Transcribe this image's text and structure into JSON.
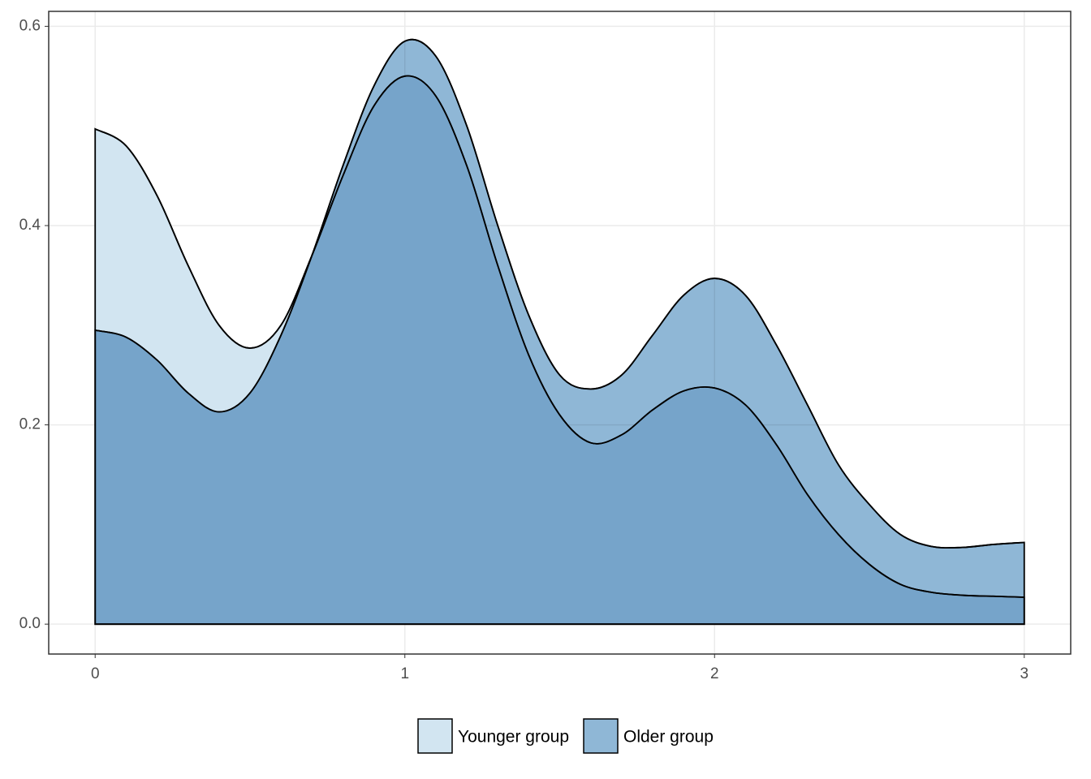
{
  "chart_data": {
    "type": "density",
    "x": [
      0,
      0.1,
      0.2,
      0.3,
      0.4,
      0.5,
      0.6,
      0.7,
      0.8,
      0.9,
      1,
      1.1,
      1.2,
      1.3,
      1.4,
      1.5,
      1.6,
      1.7,
      1.8,
      1.9,
      2,
      2.1,
      2.2,
      2.3,
      2.4,
      2.5,
      2.6,
      2.7,
      2.8,
      2.9,
      3
    ],
    "series": [
      {
        "name": "Younger group",
        "color": "#d2e5f1",
        "values": [
          0.497,
          0.48,
          0.43,
          0.36,
          0.3,
          0.277,
          0.3,
          0.37,
          0.45,
          0.52,
          0.55,
          0.53,
          0.46,
          0.36,
          0.27,
          0.21,
          0.182,
          0.19,
          0.215,
          0.234,
          0.237,
          0.22,
          0.18,
          0.13,
          0.09,
          0.06,
          0.04,
          0.032,
          0.029,
          0.028,
          0.027
        ]
      },
      {
        "name": "Older group",
        "color": "#8fb7d6",
        "values": [
          0.295,
          0.288,
          0.265,
          0.232,
          0.213,
          0.232,
          0.29,
          0.37,
          0.46,
          0.54,
          0.585,
          0.57,
          0.5,
          0.4,
          0.31,
          0.25,
          0.236,
          0.25,
          0.29,
          0.33,
          0.347,
          0.33,
          0.28,
          0.22,
          0.16,
          0.12,
          0.09,
          0.078,
          0.077,
          0.08,
          0.082
        ]
      }
    ],
    "xlim": [
      -0.15,
      3.15
    ],
    "ylim": [
      -0.03,
      0.615
    ],
    "xticks": [
      0,
      1,
      2,
      3
    ],
    "yticks": [
      {
        "value": 0,
        "label": "0.0"
      },
      0.2,
      0.4,
      0.6
    ],
    "grid": true,
    "legend": "bottom"
  }
}
